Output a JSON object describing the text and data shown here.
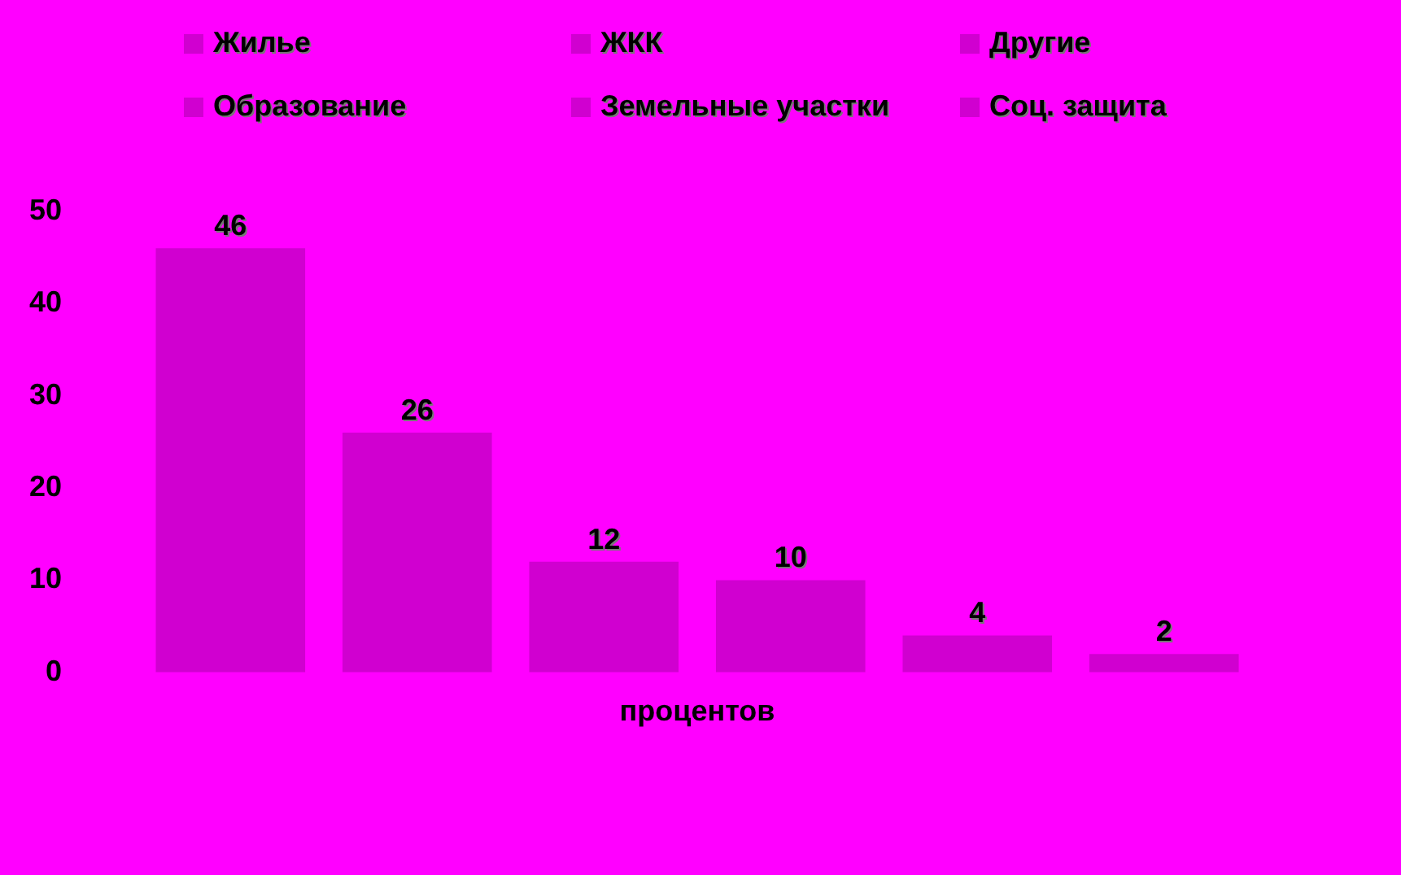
{
  "chart_data": {
    "type": "bar",
    "categories": [
      null
    ],
    "series": [
      {
        "name": "Жилье",
        "color": "#d000d0",
        "values": [
          46
        ]
      },
      {
        "name": "ЖКК",
        "color": "#d000d0",
        "values": [
          26
        ]
      },
      {
        "name": "Другие",
        "color": "#d000d0",
        "values": [
          12
        ]
      },
      {
        "name": "Образование",
        "color": "#d000d0",
        "values": [
          10
        ]
      },
      {
        "name": "Земельные участки",
        "color": "#d000d0",
        "values": [
          4
        ]
      },
      {
        "name": "Соц. защита",
        "color": "#d000d0",
        "values": [
          2
        ]
      }
    ],
    "xlabel": "процентов",
    "ylim": [
      0,
      50
    ],
    "yticks": [
      0,
      10,
      20,
      30,
      40,
      50
    ],
    "grid": false,
    "legend": "top",
    "data_labels": true
  }
}
